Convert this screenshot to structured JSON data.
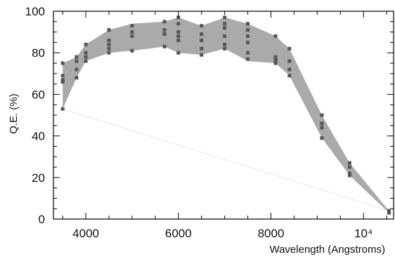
{
  "chart_data": {
    "type": "area",
    "title": "",
    "xlabel": "Wavelength (Angstroms)",
    "ylabel": "Q.E. (%)",
    "xlim": [
      3300,
      10650
    ],
    "ylim": [
      0,
      100
    ],
    "x_ticks": [
      4000,
      6000,
      8000,
      10000
    ],
    "x_tick_labels": [
      "4000",
      "6000",
      "8000",
      "10⁴"
    ],
    "y_ticks": [
      0,
      20,
      40,
      60,
      80,
      100
    ],
    "y_tick_labels": [
      "0",
      "20",
      "40",
      "60",
      "80",
      "100"
    ],
    "grid": false,
    "colors": {
      "band": "#aaaaaa",
      "points": "#555555",
      "frame": "#000000"
    },
    "band_upper": [
      [
        3500,
        75
      ],
      [
        3800,
        78
      ],
      [
        4000,
        84
      ],
      [
        4500,
        91
      ],
      [
        5000,
        94
      ],
      [
        5700,
        95
      ],
      [
        6000,
        97
      ],
      [
        6500,
        93
      ],
      [
        7000,
        97
      ],
      [
        7500,
        94
      ],
      [
        8100,
        88
      ],
      [
        8400,
        82
      ],
      [
        9100,
        50
      ],
      [
        9700,
        27
      ],
      [
        10550,
        4
      ]
    ],
    "band_lower": [
      [
        3500,
        53
      ],
      [
        3800,
        68
      ],
      [
        4000,
        76
      ],
      [
        4500,
        80
      ],
      [
        5000,
        81
      ],
      [
        5700,
        83
      ],
      [
        6000,
        80
      ],
      [
        6500,
        79
      ],
      [
        7000,
        82
      ],
      [
        7500,
        76
      ],
      [
        8100,
        75
      ],
      [
        8400,
        69
      ],
      [
        9100,
        39
      ],
      [
        9700,
        21
      ],
      [
        10550,
        3
      ]
    ],
    "points": [
      [
        3500,
        75
      ],
      [
        3500,
        69
      ],
      [
        3500,
        67
      ],
      [
        3500,
        66
      ],
      [
        3500,
        53
      ],
      [
        3800,
        78
      ],
      [
        3800,
        76
      ],
      [
        3800,
        72
      ],
      [
        3800,
        68
      ],
      [
        4000,
        84
      ],
      [
        4000,
        80
      ],
      [
        4000,
        78
      ],
      [
        4000,
        76
      ],
      [
        4500,
        91
      ],
      [
        4500,
        86
      ],
      [
        4500,
        84
      ],
      [
        4500,
        82
      ],
      [
        4500,
        80
      ],
      [
        5000,
        93
      ],
      [
        5000,
        90
      ],
      [
        5000,
        88
      ],
      [
        5000,
        81
      ],
      [
        5700,
        95
      ],
      [
        5700,
        91
      ],
      [
        5700,
        89
      ],
      [
        5700,
        83
      ],
      [
        6000,
        97
      ],
      [
        6000,
        94
      ],
      [
        6000,
        90
      ],
      [
        6000,
        88
      ],
      [
        6000,
        86
      ],
      [
        6000,
        80
      ],
      [
        6500,
        93
      ],
      [
        6500,
        89
      ],
      [
        6500,
        86
      ],
      [
        6500,
        82
      ],
      [
        6500,
        79
      ],
      [
        7000,
        97
      ],
      [
        7000,
        94
      ],
      [
        7000,
        92
      ],
      [
        7000,
        88
      ],
      [
        7000,
        84
      ],
      [
        7000,
        82
      ],
      [
        7500,
        94
      ],
      [
        7500,
        91
      ],
      [
        7500,
        88
      ],
      [
        7500,
        85
      ],
      [
        7500,
        80
      ],
      [
        7500,
        77
      ],
      [
        8100,
        88
      ],
      [
        8100,
        78
      ],
      [
        8100,
        77
      ],
      [
        8100,
        76
      ],
      [
        8100,
        75
      ],
      [
        8400,
        82
      ],
      [
        8400,
        76
      ],
      [
        8400,
        72
      ],
      [
        8400,
        69
      ],
      [
        9100,
        50
      ],
      [
        9100,
        46
      ],
      [
        9100,
        44
      ],
      [
        9100,
        39
      ],
      [
        9700,
        27
      ],
      [
        9700,
        25
      ],
      [
        9700,
        22
      ],
      [
        9700,
        21
      ],
      [
        10550,
        4
      ],
      [
        10550,
        3
      ]
    ],
    "faint_line": [
      [
        3500,
        53
      ],
      [
        10550,
        4
      ]
    ]
  }
}
